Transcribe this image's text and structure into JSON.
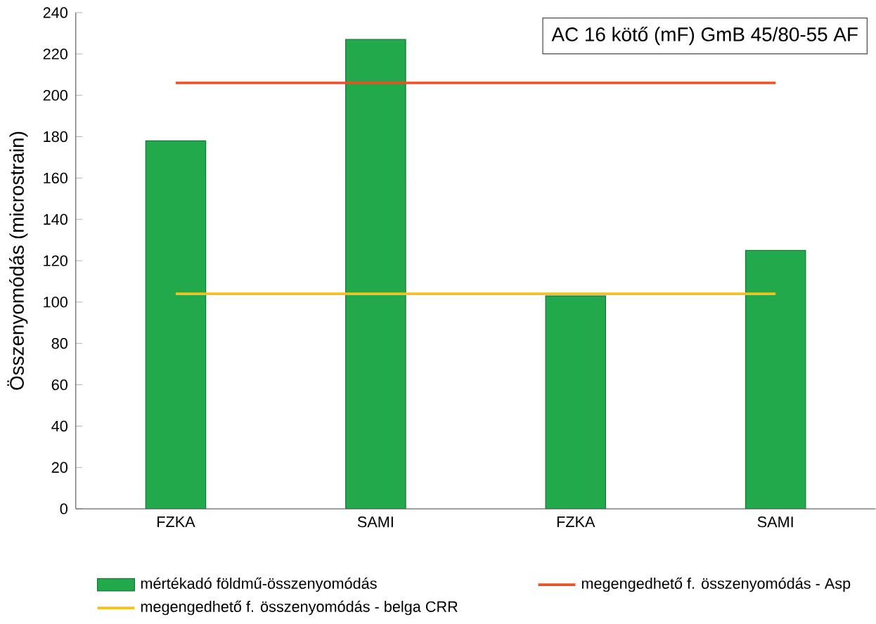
{
  "chart_data": {
    "type": "bar",
    "title": "AC 16 kötő (mF) GmB 45/80-55 AF",
    "ylabel": "Összenyomódás (microstrain)",
    "categories": [
      "FZKA",
      "SAMI",
      "FZKA",
      "SAMI"
    ],
    "series": [
      {
        "name": "mértékadó földmű-összenyomódás",
        "color": "#22a94c",
        "values": [
          178,
          227,
          103,
          125
        ]
      }
    ],
    "ref_lines": [
      {
        "axis": "y",
        "value": 206,
        "label": "megengedhető f. összenyomódás - Asp",
        "color": "#f04e23"
      },
      {
        "axis": "y",
        "value": 104,
        "label": "megengedhető f. összenyomódás - belga CRR",
        "color": "#f5c21b"
      }
    ],
    "ylim": [
      0,
      240
    ],
    "yticks": [
      0,
      20,
      40,
      60,
      80,
      100,
      120,
      140,
      160,
      180,
      200,
      220,
      240
    ],
    "legend": "bottom"
  }
}
